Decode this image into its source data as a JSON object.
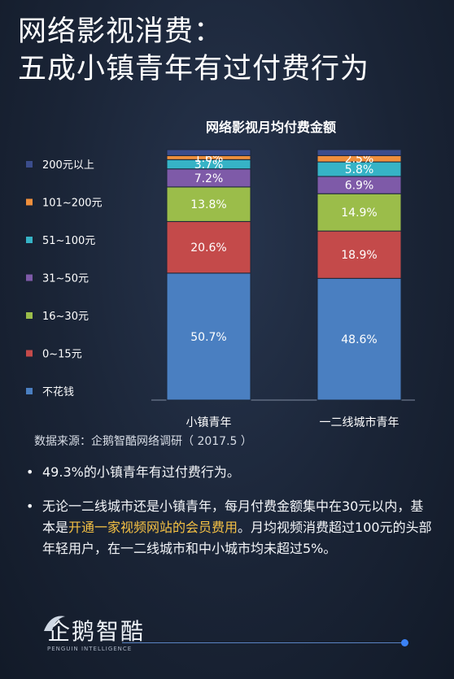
{
  "title": {
    "line1": "网络影视消费：",
    "line2": "五成小镇青年有过付费行为"
  },
  "chart_data": {
    "type": "bar",
    "stacked": true,
    "title": "网络影视月均付费金额",
    "categories": [
      "小镇青年",
      "一二线城市青年"
    ],
    "ylim": [
      0,
      100
    ],
    "grid": false,
    "legend_position": "left",
    "series": [
      {
        "name": "不花钱",
        "color": "#4a7fc1",
        "values": [
          50.7,
          48.6
        ],
        "labels": [
          "50.7%",
          "48.6%"
        ]
      },
      {
        "name": "0~15元",
        "color": "#c44a4a",
        "values": [
          20.6,
          18.9
        ],
        "labels": [
          "20.6%",
          "18.9%"
        ]
      },
      {
        "name": "16~30元",
        "color": "#9bbd4a",
        "values": [
          13.8,
          14.9
        ],
        "labels": [
          "13.8%",
          "14.9%"
        ]
      },
      {
        "name": "31~50元",
        "color": "#7e5aa8",
        "values": [
          7.2,
          6.9
        ],
        "labels": [
          "7.2%",
          "6.9%"
        ]
      },
      {
        "name": "51~100元",
        "color": "#36b3c6",
        "values": [
          3.7,
          5.8
        ],
        "labels": [
          "3.7%",
          "5.8%"
        ]
      },
      {
        "name": "101~200元",
        "color": "#ef8f3c",
        "values": [
          1.6,
          2.5
        ],
        "labels": [
          "1.6%",
          "2.5%"
        ]
      },
      {
        "name": "200元以上",
        "color": "#3b4d8c",
        "values": [
          2.4,
          2.4
        ],
        "labels": [
          "",
          ""
        ]
      }
    ]
  },
  "source": "数据来源：企鹅智酷网络调研（ 2017.5 ）",
  "bullets": {
    "dot": "•",
    "b1": "49.3%的小镇青年有过付费行为。",
    "b2_pre": "无论一二线城市还是小镇青年，每月付费金额集中在30元以内，基本是",
    "b2_hl": "开通一家视频网站的会员费用",
    "b2_post": "。月均视频消费超过100元的头部年轻用户，在一二线城市和中小城市均未超过5%。"
  },
  "logo": {
    "text": "企鹅智酷",
    "sub": "PENGUIN INTELLIGENCE"
  }
}
